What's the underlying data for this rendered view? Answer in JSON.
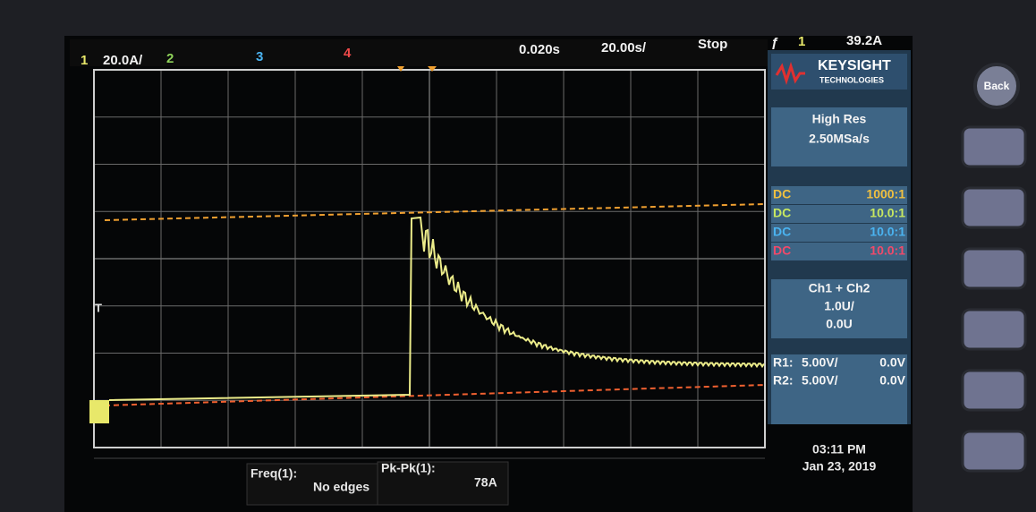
{
  "top_bar": {
    "ch1_label": "1",
    "ch1_scale": "20.0A/",
    "ch2_label": "2",
    "ch3_label": "3",
    "ch4_label": "4",
    "time_delay": "0.020s",
    "time_scale": "20.00s/",
    "run_state": "Stop",
    "trigger_source": "1",
    "trigger_level": "39.2A"
  },
  "trigger_marker": "T",
  "side_panel": {
    "brand": "KEYSIGHT",
    "brand_sub": "TECHNOLOGIES",
    "acq_mode": "High Res",
    "sample_rate": "2.50MSa/s",
    "channels": [
      {
        "coupling": "DC",
        "probe": "1000:1"
      },
      {
        "coupling": "DC",
        "probe": "10.0:1"
      },
      {
        "coupling": "DC",
        "probe": "10.0:1"
      },
      {
        "coupling": "DC",
        "probe": "10.0:1"
      }
    ],
    "math": {
      "title": "Ch1 + Ch2",
      "scale": "1.0U/",
      "offset": "0.0U"
    },
    "refs": [
      {
        "name": "R1:",
        "scale": "5.00V/",
        "offset": "0.0V"
      },
      {
        "name": "R2:",
        "scale": "5.00V/",
        "offset": "0.0V"
      }
    ]
  },
  "measurements": [
    {
      "label": "Freq(1):",
      "value": "No edges"
    },
    {
      "label": "Pk-Pk(1):",
      "value": "78A"
    }
  ],
  "clock": {
    "time": "03:11 PM",
    "date": "Jan 23, 2019"
  },
  "buttons": {
    "back": "Back"
  }
}
